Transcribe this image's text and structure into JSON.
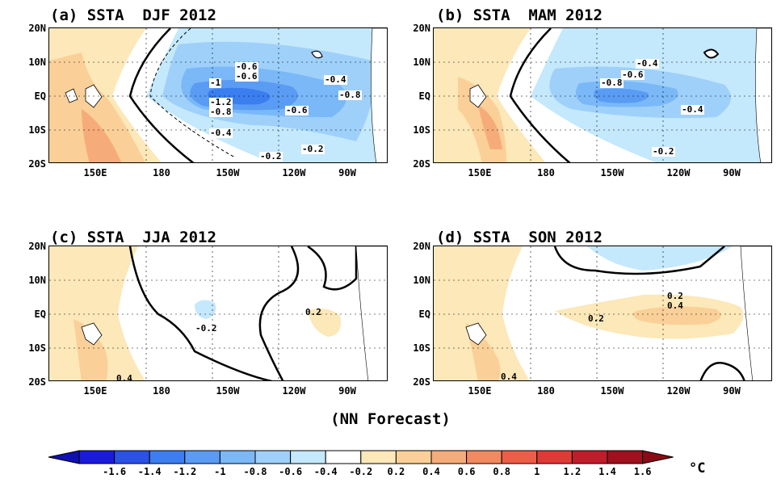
{
  "panels": [
    {
      "title": "(a) SSTA  DJF 2012",
      "labels": [
        "-0.6",
        "-0.6",
        "-1",
        "-1.2",
        "-0.8",
        "-0.4",
        "-0.8",
        "-0.6",
        "-0.4",
        "-0.2",
        "-0.2"
      ]
    },
    {
      "title": "(b) SSTA  MAM 2012",
      "labels": [
        "-0.4",
        "-0.6",
        "-0.8",
        "-0.4",
        "-0.2"
      ]
    },
    {
      "title": "(c) SSTA  JJA 2012",
      "labels": [
        "-0.2",
        "0.2",
        "0.4"
      ]
    },
    {
      "title": "(d) SSTA  SON 2012",
      "labels": [
        "0.2",
        "0.4",
        "0.2",
        "0.4"
      ]
    }
  ],
  "lat_ticks": [
    "20N",
    "10N",
    "EQ",
    "10S",
    "20S"
  ],
  "lon_ticks": [
    "150E",
    "180",
    "150W",
    "120W",
    "90W"
  ],
  "footer": "(NN Forecast)",
  "colorbar": {
    "labels": [
      "-1.6",
      "-1.4",
      "-1.2",
      "-1",
      "-0.8",
      "-0.6",
      "-0.4",
      "-0.2",
      "0.2",
      "0.4",
      "0.6",
      "0.8",
      "1",
      "1.2",
      "1.4",
      "1.6"
    ],
    "unit": "°C",
    "colors": [
      "#1a1adc",
      "#2a52e6",
      "#3b7ef0",
      "#5a9cf4",
      "#7ab8f8",
      "#9ed0fa",
      "#c4e8fc",
      "#ffffff",
      "#fce8b8",
      "#fad098",
      "#f6ac7a",
      "#f28a60",
      "#ee5e46",
      "#e03a36",
      "#c01c2a",
      "#a0101e"
    ],
    "left_color": "#1010b4",
    "right_color": "#8a0a16"
  }
}
